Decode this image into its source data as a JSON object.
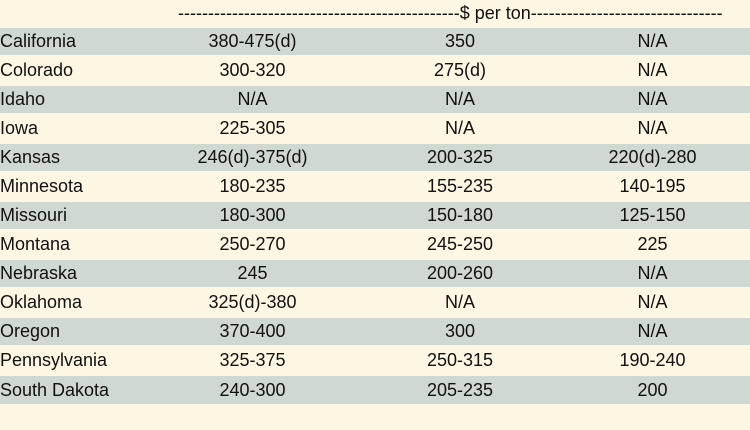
{
  "header": {
    "unit_label": "$ per ton"
  },
  "table": {
    "rows": [
      {
        "state": "California",
        "a": "380-475(d)",
        "b": "350",
        "c": "N/A"
      },
      {
        "state": "Colorado",
        "a": "300-320",
        "b": "275(d)",
        "c": "N/A"
      },
      {
        "state": "Idaho",
        "a": "N/A",
        "b": "N/A",
        "c": "N/A"
      },
      {
        "state": "Iowa",
        "a": "225-305",
        "b": "N/A",
        "c": "N/A"
      },
      {
        "state": "Kansas",
        "a": "246(d)-375(d)",
        "b": "200-325",
        "c": "220(d)-280"
      },
      {
        "state": "Minnesota",
        "a": "180-235",
        "b": "155-235",
        "c": "140-195"
      },
      {
        "state": "Missouri",
        "a": "180-300",
        "b": "150-180",
        "c": "125-150"
      },
      {
        "state": "Montana",
        "a": "250-270",
        "b": "245-250",
        "c": "225"
      },
      {
        "state": "Nebraska",
        "a": "245",
        "b": "200-260",
        "c": "N/A"
      },
      {
        "state": "Oklahoma",
        "a": "325(d)-380",
        "b": "N/A",
        "c": "N/A"
      },
      {
        "state": "Oregon",
        "a": "370-400",
        "b": "300",
        "c": "N/A"
      },
      {
        "state": "Pennsylvania",
        "a": "325-375",
        "b": "250-315",
        "c": "190-240"
      },
      {
        "state": "South Dakota",
        "a": "240-300",
        "b": "205-235",
        "c": "200"
      }
    ]
  },
  "colors": {
    "band": "#cfd9d1",
    "paper": "#fdf6e3",
    "text": "#111111"
  }
}
